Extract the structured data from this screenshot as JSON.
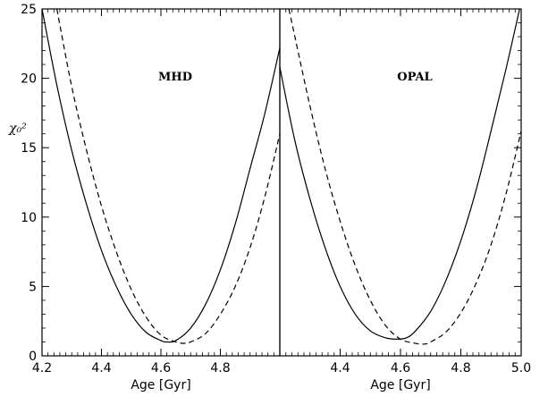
{
  "chart_data": [
    {
      "type": "line",
      "title": "MHD",
      "xlabel": "Age [Gyr]",
      "ylabel": "χ₀²",
      "xlim": [
        4.2,
        5.0
      ],
      "ylim": [
        0,
        25
      ],
      "xticks": [
        "4.2",
        "4.4",
        "4.6",
        "4.8"
      ],
      "xtick_values": [
        4.2,
        4.4,
        4.6,
        4.8
      ],
      "yticks": [
        "0",
        "5",
        "10",
        "15",
        "20",
        "25"
      ],
      "ytick_values": [
        0,
        5,
        10,
        15,
        20,
        25
      ],
      "grid": false,
      "series": [
        {
          "style": "solid",
          "x": [
            4.2,
            4.25,
            4.3,
            4.35,
            4.4,
            4.45,
            4.5,
            4.55,
            4.6,
            4.62,
            4.65,
            4.7,
            4.75,
            4.8,
            4.85,
            4.9,
            4.95,
            5.0
          ],
          "y": [
            25.0,
            19.5,
            14.8,
            10.9,
            7.6,
            5.0,
            3.0,
            1.7,
            1.1,
            1.0,
            1.1,
            2.0,
            3.7,
            6.2,
            9.5,
            13.5,
            17.5,
            22.2
          ]
        },
        {
          "style": "dashed",
          "x": [
            4.25,
            4.3,
            4.35,
            4.4,
            4.45,
            4.5,
            4.55,
            4.6,
            4.65,
            4.68,
            4.7,
            4.75,
            4.8,
            4.85,
            4.9,
            4.95,
            5.0
          ],
          "y": [
            25.0,
            19.4,
            14.8,
            10.8,
            7.5,
            4.8,
            2.8,
            1.5,
            1.0,
            0.9,
            1.0,
            1.6,
            3.0,
            5.0,
            7.8,
            11.5,
            16.0
          ]
        }
      ]
    },
    {
      "type": "line",
      "title": "OPAL",
      "xlabel": "Age [Gyr]",
      "ylabel": "",
      "xlim": [
        4.2,
        5.0
      ],
      "ylim": [
        0,
        25
      ],
      "xticks": [
        "4.4",
        "4.6",
        "4.8",
        "5.0"
      ],
      "xtick_values": [
        4.4,
        4.6,
        4.8,
        5.0
      ],
      "yticks": [],
      "ytick_values": [
        0,
        5,
        10,
        15,
        20,
        25
      ],
      "grid": false,
      "series": [
        {
          "style": "solid",
          "x": [
            4.2,
            4.25,
            4.3,
            4.35,
            4.4,
            4.45,
            4.5,
            4.55,
            4.59,
            4.62,
            4.65,
            4.7,
            4.75,
            4.8,
            4.85,
            4.9,
            4.95,
            5.0
          ],
          "y": [
            20.8,
            15.5,
            11.3,
            7.8,
            5.0,
            3.0,
            1.8,
            1.3,
            1.2,
            1.3,
            1.8,
            3.2,
            5.4,
            8.3,
            11.9,
            16.2,
            20.7,
            25.5
          ]
        },
        {
          "style": "dashed",
          "x": [
            4.23,
            4.25,
            4.3,
            4.35,
            4.4,
            4.45,
            4.5,
            4.55,
            4.6,
            4.65,
            4.68,
            4.7,
            4.75,
            4.8,
            4.85,
            4.9,
            4.95,
            5.0
          ],
          "y": [
            25.0,
            23.0,
            18.0,
            13.5,
            9.7,
            6.5,
            4.0,
            2.2,
            1.2,
            0.9,
            0.85,
            1.0,
            1.7,
            3.1,
            5.2,
            8.0,
            11.7,
            16.2
          ]
        }
      ]
    }
  ]
}
